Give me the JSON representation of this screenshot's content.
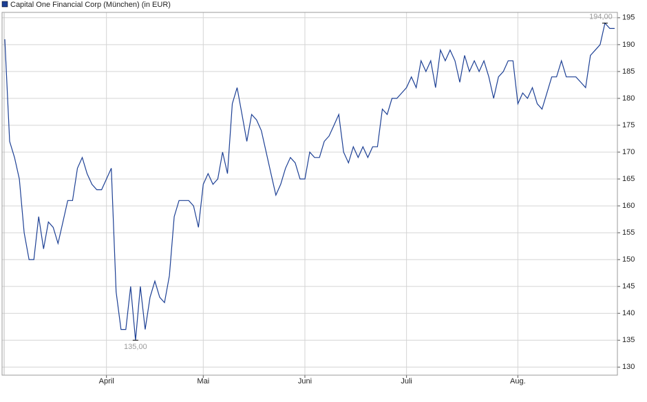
{
  "chart_data": {
    "type": "line",
    "series": [
      {
        "name": "Capital One Financial Corp (München) (in EUR)",
        "color": "#1c3f94",
        "values": [
          191,
          172,
          169,
          165,
          155,
          150,
          150,
          158,
          152,
          157,
          156,
          153,
          157,
          161,
          161,
          167,
          169,
          166,
          164,
          163,
          163,
          165,
          167,
          144,
          137,
          137,
          145,
          135,
          145,
          137,
          143,
          146,
          143,
          142,
          147,
          158,
          161,
          161,
          161,
          160,
          156,
          164,
          166,
          164,
          165,
          170,
          166,
          179,
          182,
          177,
          172,
          177,
          176,
          174,
          170,
          166,
          162,
          164,
          167,
          169,
          168,
          165,
          165,
          170,
          169,
          169,
          172,
          173,
          175,
          177,
          170,
          168,
          171,
          169,
          171,
          169,
          171,
          171,
          178,
          177,
          180,
          180,
          181,
          182,
          184,
          182,
          187,
          185,
          187,
          182,
          189,
          187,
          189,
          187,
          183,
          188,
          185,
          187,
          185,
          187,
          184,
          180,
          184,
          185,
          187,
          187,
          179,
          181,
          180,
          182,
          179,
          178,
          181,
          184,
          184,
          187,
          184,
          184,
          184,
          183,
          182,
          188,
          189,
          190,
          194,
          193,
          193
        ],
        "value_labels": [
          null,
          null,
          null,
          null,
          null,
          null,
          null,
          null,
          null,
          null,
          null,
          null,
          null,
          null,
          null,
          null,
          null,
          null,
          null,
          null,
          null,
          null,
          null,
          null,
          null,
          null,
          null,
          "135,00",
          null,
          null,
          null,
          null,
          null,
          null,
          null,
          null,
          null,
          null,
          null,
          null,
          null,
          null,
          null,
          null,
          null,
          null,
          null,
          null,
          null,
          null,
          null,
          null,
          null,
          null,
          null,
          null,
          null,
          null,
          null,
          null,
          null,
          null,
          null,
          null,
          null,
          null,
          null,
          null,
          null,
          null,
          null,
          null,
          null,
          null,
          null,
          null,
          null,
          null,
          null,
          null,
          null,
          null,
          null,
          null,
          null,
          null,
          null,
          null,
          null,
          null,
          null,
          null,
          null,
          null,
          null,
          null,
          null,
          null,
          null,
          null,
          null,
          null,
          null,
          null,
          null,
          null,
          null,
          null,
          null,
          null,
          null,
          null,
          null,
          null,
          null,
          null,
          null,
          null,
          null,
          null,
          null,
          null,
          null,
          null,
          "194,00",
          null,
          null
        ]
      }
    ],
    "categories": [
      null,
      null,
      null,
      null,
      null,
      null,
      null,
      null,
      null,
      null,
      null,
      null,
      null,
      null,
      null,
      null,
      null,
      null,
      null,
      null,
      null,
      "April",
      null,
      null,
      null,
      null,
      null,
      null,
      null,
      null,
      null,
      null,
      null,
      null,
      null,
      null,
      null,
      null,
      null,
      null,
      null,
      "Mai",
      null,
      null,
      null,
      null,
      null,
      null,
      null,
      null,
      null,
      null,
      null,
      null,
      null,
      null,
      null,
      null,
      null,
      null,
      null,
      null,
      "Juni",
      null,
      null,
      null,
      null,
      null,
      null,
      null,
      null,
      null,
      null,
      null,
      null,
      null,
      null,
      null,
      null,
      null,
      null,
      null,
      null,
      "Juli",
      null,
      null,
      null,
      null,
      null,
      null,
      null,
      null,
      null,
      null,
      null,
      null,
      null,
      null,
      null,
      null,
      null,
      null,
      null,
      null,
      null,
      null,
      "Aug.",
      null,
      null,
      null,
      null,
      null,
      null,
      null,
      null,
      null,
      null,
      null,
      null,
      null,
      null,
      null,
      null,
      null,
      null,
      null,
      null
    ],
    "ylim": [
      128.5,
      196
    ],
    "yticks": [
      130,
      135,
      140,
      145,
      150,
      155,
      160,
      165,
      170,
      175,
      180,
      185,
      190,
      195
    ],
    "grid": true
  }
}
